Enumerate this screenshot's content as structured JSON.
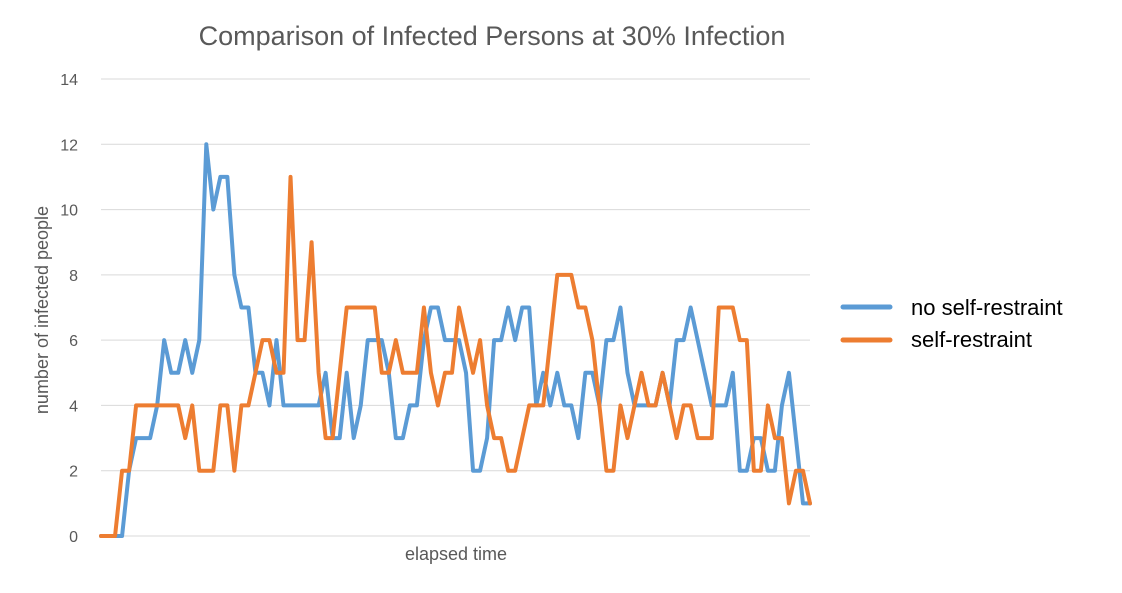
{
  "chart_data": {
    "type": "line",
    "title": "Comparison of Infected Persons at 30% Infection",
    "xlabel": "elapsed time",
    "ylabel": "number of infected people",
    "ylim": [
      0,
      14
    ],
    "yticks": [
      0,
      2,
      4,
      6,
      8,
      10,
      12,
      14
    ],
    "grid": true,
    "legend": "right",
    "series": [
      {
        "name": "no self-restraint",
        "color": "#5B9BD5",
        "values": [
          0,
          0,
          0,
          0,
          2,
          3,
          3,
          3,
          4,
          6,
          5,
          5,
          6,
          5,
          6,
          12,
          10,
          11,
          11,
          8,
          7,
          7,
          5,
          5,
          4,
          6,
          4,
          4,
          4,
          4,
          4,
          4,
          5,
          3,
          3,
          5,
          3,
          4,
          6,
          6,
          6,
          5,
          3,
          3,
          4,
          4,
          6,
          7,
          7,
          6,
          6,
          6,
          5,
          2,
          2,
          3,
          6,
          6,
          7,
          6,
          7,
          7,
          4,
          5,
          4,
          5,
          4,
          4,
          3,
          5,
          5,
          4,
          6,
          6,
          7,
          5,
          4,
          4,
          4,
          4,
          5,
          4,
          6,
          6,
          7,
          6,
          5,
          4,
          4,
          4,
          5,
          2,
          2,
          3,
          3,
          2,
          2,
          4,
          5,
          3,
          1,
          1
        ]
      },
      {
        "name": "self-restraint",
        "color": "#ED7D31",
        "values": [
          0,
          0,
          0,
          2,
          2,
          4,
          4,
          4,
          4,
          4,
          4,
          4,
          3,
          4,
          2,
          2,
          2,
          4,
          4,
          2,
          4,
          4,
          5,
          6,
          6,
          5,
          5,
          11,
          6,
          6,
          9,
          5,
          3,
          3,
          5,
          7,
          7,
          7,
          7,
          7,
          5,
          5,
          6,
          5,
          5,
          5,
          7,
          5,
          4,
          5,
          5,
          7,
          6,
          5,
          6,
          4,
          3,
          3,
          2,
          2,
          3,
          4,
          4,
          4,
          6,
          8,
          8,
          8,
          7,
          7,
          6,
          4,
          2,
          2,
          4,
          3,
          4,
          5,
          4,
          4,
          5,
          4,
          3,
          4,
          4,
          3,
          3,
          3,
          7,
          7,
          7,
          6,
          6,
          2,
          2,
          4,
          3,
          3,
          1,
          2,
          2,
          1
        ]
      }
    ]
  }
}
